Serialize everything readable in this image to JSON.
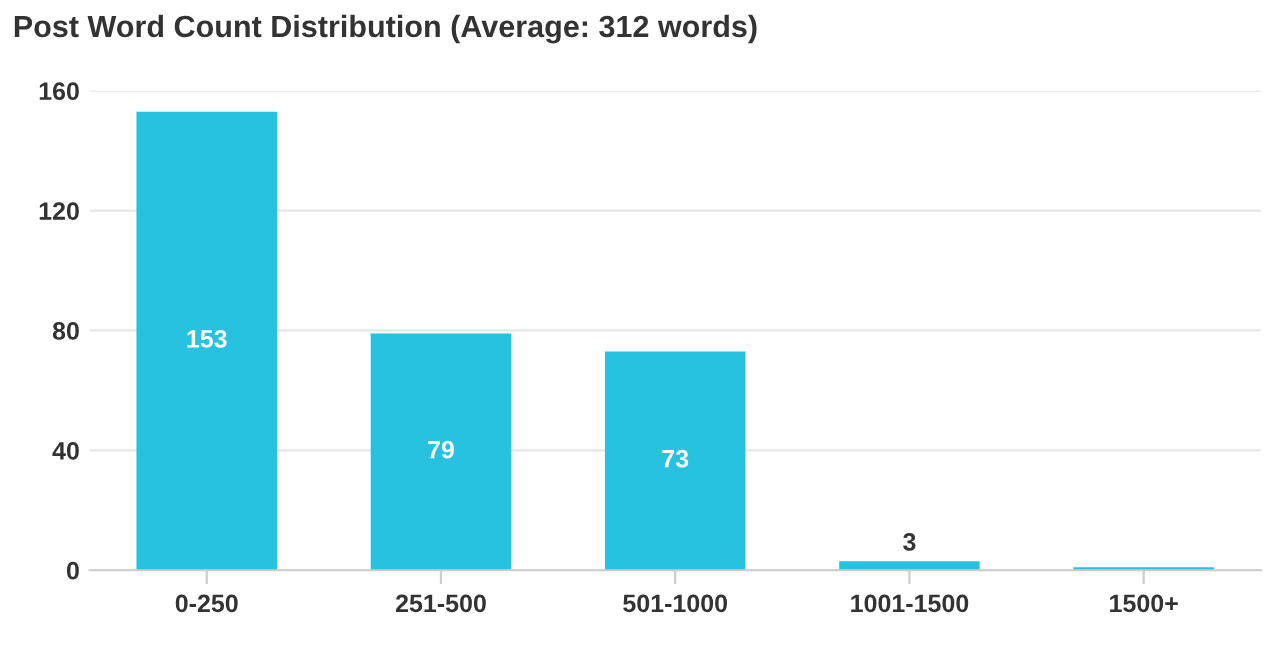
{
  "chart_data": {
    "type": "bar",
    "title": "Post Word Count Distribution (Average: 312 words)",
    "categories": [
      "0-250",
      "251-500",
      "501-1000",
      "1001-1500",
      "1500+"
    ],
    "values": [
      153,
      79,
      73,
      3,
      1
    ],
    "value_labels": [
      "153",
      "79",
      "73",
      "3",
      null
    ],
    "color": "#26c2e0",
    "ylim": [
      0,
      160
    ],
    "yticks": [
      0,
      40,
      80,
      120,
      160
    ],
    "grid": "y"
  }
}
